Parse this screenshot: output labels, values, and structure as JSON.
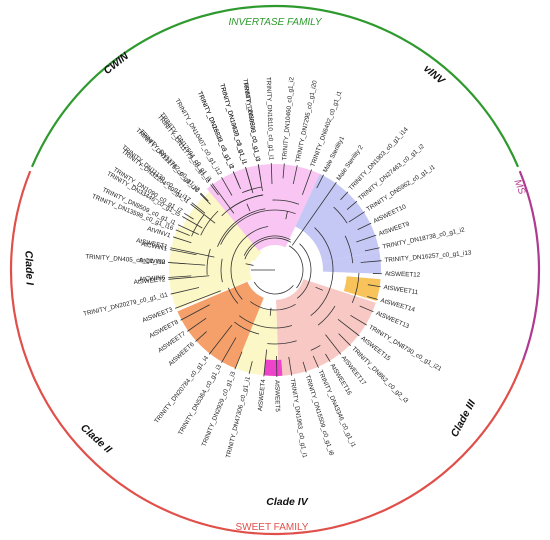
{
  "families": {
    "invertase": {
      "label": "INVERTASE FAMILY",
      "color": "#2e9a2e"
    },
    "sweet": {
      "label": "SWEET FAMILY",
      "color": "#e0504a"
    },
    "ms": {
      "label": "MS",
      "color": "#b03a90"
    }
  },
  "clades": {
    "cwin": "CWIN",
    "vinv": "vINV",
    "clade1": "Clade I",
    "clade2": "Clade II",
    "clade3": "Clade III",
    "clade4": "Clade IV"
  },
  "leaves": [
    "TRINITY_DN30800_c0_g1_i3",
    "TRINITY_DN13630_c0_g1_i1",
    "TRINITY_DN16329_c3_g1_i1",
    "TRINITY_DN12594_c0_g1_i1",
    "TRINITY_DN13175_c0_g1_i10",
    "TRINITY_DN32204_c0_g1_i1",
    "TRINITY_DN33446_c0_g1_i5",
    "TRINITY_DN13598_c0_g1_i16",
    "AtSWEET1",
    "TRINITY_DN405_c0_g1_i10",
    "AtSWEET2",
    "TRINITY_DN20279_c0_g1_i11",
    "AtSWEET3",
    "AtSWEET8",
    "AtSWEET7",
    "AtSWEET6",
    "TRINITY_DN20784_c0_g1_i4",
    "TRINITY_DN5364_c0_g1_i3",
    "TRINITY_DN2929_c0_g1_i3",
    "TRINITY_DN47306_c0_g1_i1",
    "AtSWEET4",
    "AtSWEET5",
    "TRINITY_DN1963_c0_g1_i1",
    "TRINITY_DN15509_c0_g1_i8",
    "TRINITY_DN43346_c0_g1_i1",
    "AtSWEET16",
    "AtSWEET17",
    "TRINITY_DN862_c0_g2_i3",
    "AtSWEET15",
    "TRINITY_DN8730_c0_g1_i21",
    "AtSWEET13",
    "AtSWEET14",
    "AtSWEET11",
    "AtSWEET12",
    "TRINITY_DN16257_c0_g1_i13",
    "TRINITY_DN18738_c0_g1_i2",
    "AtSWEET9",
    "AtSWEET10",
    "TRINITY_DN5962_c0_g1_i1",
    "TRINITY_DN27463_c0_g1_i2",
    "TRINITY_DN1903_c0_g1_i14",
    "Male Sterility 2",
    "Male Sterility1",
    "TRINITY_DN6402_c0_g1_i1",
    "TRINITY_DN7295_c0_g1_i20",
    "TRINITY_DN10460_c0_g1_i2",
    "TRINITY_DN18110_c0_g1_i1",
    "TRINITY_DN8533_c0_g1_i3",
    "TRINITY_DN10425_c1_g1_i1",
    "TRINITY_DN28832_c0_g1_i2",
    "TRINITY_DN10407_c0_g1_i12",
    "TRINITY_DN11779_c0_g1_i3",
    "TRINITY_DN13782_c0_g1_i2",
    "TRINITY_DN11130_c0_g1_i17",
    "TRINITY_DN1090_c0_g1_i7",
    "TRINITY_DN9509_c0_g1_i1",
    "AtVINV1",
    "AtCWIN1",
    "AtCWIN2",
    "AtCWIN6"
  ],
  "region_colors": {
    "cwin": "#f9c6f4",
    "vinv": "#c5c8f5",
    "ms": "#f7c35a",
    "clade1": "#fbf7c6",
    "clade2": "#f5a06a",
    "clade3": "#f8c9c4",
    "clade4": "#ee44cc"
  }
}
